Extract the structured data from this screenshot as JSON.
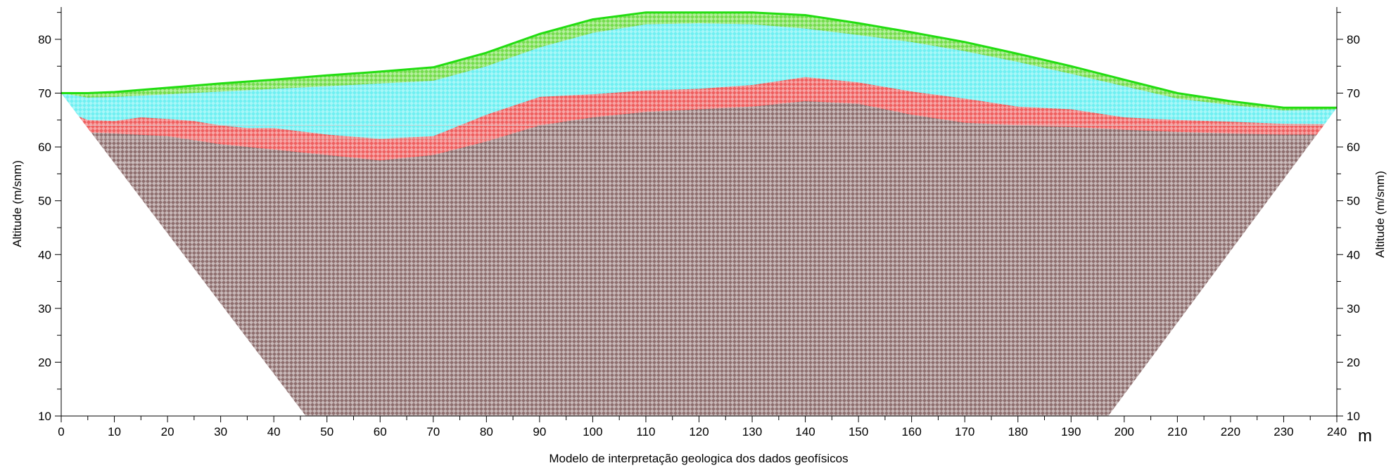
{
  "chart_data": {
    "type": "area",
    "title": "",
    "xlabel": "Modelo de interpretação geologica dos dados geofísicos",
    "x_unit": "m",
    "ylabel_left": "Altitude (m/snm)",
    "ylabel_right": "Altitude (m/snm)",
    "xlim": [
      0,
      240
    ],
    "ylim": [
      10,
      86
    ],
    "x_ticks": [
      0,
      10,
      20,
      30,
      40,
      50,
      60,
      70,
      80,
      90,
      100,
      110,
      120,
      130,
      140,
      150,
      160,
      170,
      180,
      190,
      200,
      210,
      220,
      230,
      240
    ],
    "y_ticks": [
      10,
      20,
      30,
      40,
      50,
      60,
      70,
      80
    ],
    "grid": false,
    "colors": {
      "topsoil": "#7ee05a",
      "water_layer": "#7ff2f4",
      "clay_layer": "#f06a6a",
      "bedrock": "#8e6e6e",
      "surface_line": "#22dd11"
    },
    "series": [
      {
        "key": "surface",
        "x": [
          0,
          5,
          10,
          20,
          30,
          40,
          50,
          60,
          70,
          80,
          90,
          100,
          110,
          120,
          130,
          140,
          150,
          160,
          170,
          180,
          190,
          200,
          210,
          220,
          230,
          240
        ],
        "y": [
          70,
          70,
          70.2,
          71,
          71.8,
          72.5,
          73.3,
          74,
          74.8,
          77.5,
          81,
          83.7,
          85,
          85,
          85,
          84.5,
          83,
          81.3,
          79.5,
          77.3,
          75,
          72.5,
          70,
          68.5,
          67.3,
          67.3
        ]
      },
      {
        "key": "topsoil_base",
        "x": [
          0,
          5,
          10,
          20,
          30,
          40,
          50,
          60,
          70,
          80,
          90,
          100,
          110,
          120,
          130,
          140,
          150,
          160,
          170,
          180,
          190,
          200,
          210,
          220,
          230,
          240
        ],
        "y": [
          70,
          69.2,
          69.3,
          69.8,
          70.3,
          70.8,
          71.3,
          71.8,
          72.3,
          75,
          78.5,
          81.2,
          82.8,
          83,
          82.8,
          82,
          80.8,
          79.5,
          77.8,
          75.8,
          73.6,
          71.3,
          69,
          67.8,
          66.8,
          67
        ]
      },
      {
        "key": "water_layer_base",
        "x": [
          1,
          5,
          10,
          15,
          20,
          25,
          30,
          35,
          40,
          50,
          60,
          70,
          80,
          90,
          100,
          110,
          120,
          130,
          140,
          150,
          160,
          170,
          180,
          190,
          200,
          210,
          220,
          230,
          239
        ],
        "y": [
          66.5,
          65,
          64.8,
          65.5,
          65.2,
          64.8,
          64,
          63.5,
          63.5,
          62.3,
          61.5,
          62,
          66,
          69.3,
          69.8,
          70.5,
          70.8,
          71.5,
          73,
          72,
          70.3,
          69,
          67.5,
          67,
          65.5,
          65,
          64.7,
          64.3,
          64.2
        ]
      },
      {
        "key": "clay_layer_base",
        "x": [
          3,
          5,
          10,
          20,
          30,
          40,
          50,
          60,
          70,
          80,
          90,
          100,
          110,
          120,
          130,
          140,
          150,
          160,
          170,
          180,
          190,
          200,
          210,
          220,
          230,
          237
        ],
        "y": [
          63,
          62.7,
          62.5,
          62,
          60.5,
          59.5,
          58.5,
          57.5,
          58.5,
          61,
          64,
          65.5,
          66.5,
          67,
          67.5,
          68.5,
          68,
          66,
          64.5,
          64,
          63.7,
          63.2,
          62.8,
          62.5,
          62.3,
          62.3
        ]
      },
      {
        "key": "section_limit",
        "x": [
          0,
          46,
          197,
          240
        ],
        "y": [
          70,
          10,
          10,
          67.3
        ]
      }
    ]
  }
}
